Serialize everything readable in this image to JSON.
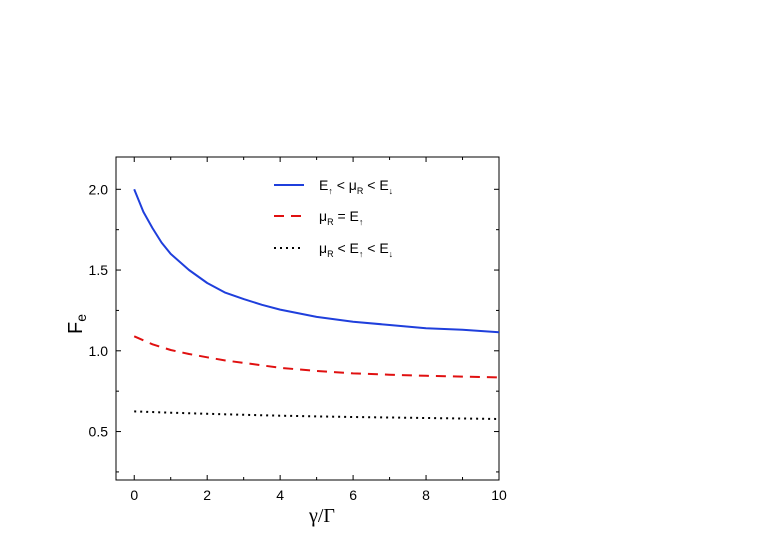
{
  "chart_data": {
    "type": "line",
    "xlabel": "γ/Γ",
    "ylabel": "F",
    "ylabel_sub": "e",
    "xlim": [
      -0.5,
      10
    ],
    "ylim": [
      0.2,
      2.2
    ],
    "x_ticks": [
      0,
      2,
      4,
      6,
      8,
      10
    ],
    "x_tick_labels": [
      "0",
      "2",
      "4",
      "6",
      "8",
      "10"
    ],
    "y_ticks": [
      0.5,
      1.0,
      1.5,
      2.0
    ],
    "y_tick_labels": [
      "0.5",
      "1.0",
      "1.5",
      "2.0"
    ],
    "grid": false,
    "legend_position": "top-right",
    "series": [
      {
        "key": "s1",
        "legend_parts": [
          "E",
          "↑",
          " <  μ",
          "R",
          " < E",
          "↓"
        ],
        "color": "#1f3fdc",
        "dash": "solid",
        "x": [
          0,
          0.25,
          0.5,
          0.75,
          1,
          1.5,
          2,
          2.5,
          3,
          3.5,
          4,
          5,
          6,
          7,
          8,
          9,
          10
        ],
        "y": [
          2.0,
          1.86,
          1.76,
          1.67,
          1.6,
          1.5,
          1.42,
          1.36,
          1.32,
          1.285,
          1.255,
          1.21,
          1.18,
          1.16,
          1.14,
          1.13,
          1.115
        ]
      },
      {
        "key": "s2",
        "legend_parts": [
          "μ",
          "R",
          " =  E",
          "↑"
        ],
        "color": "#e01010",
        "dash": "dashed",
        "x": [
          0,
          0.5,
          1,
          1.5,
          2,
          2.5,
          3,
          4,
          5,
          6,
          7,
          8,
          9,
          10
        ],
        "y": [
          1.09,
          1.04,
          1.005,
          0.98,
          0.96,
          0.94,
          0.925,
          0.895,
          0.875,
          0.86,
          0.852,
          0.845,
          0.84,
          0.835
        ]
      },
      {
        "key": "s3",
        "legend_parts": [
          "μ",
          "R",
          " <  E",
          "↑",
          " < E",
          "↓"
        ],
        "color": "#000000",
        "dash": "dotted",
        "x": [
          0,
          1,
          2,
          3,
          4,
          5,
          6,
          7,
          8,
          9,
          10
        ],
        "y": [
          0.625,
          0.617,
          0.61,
          0.604,
          0.598,
          0.594,
          0.59,
          0.587,
          0.584,
          0.581,
          0.578
        ]
      }
    ]
  }
}
